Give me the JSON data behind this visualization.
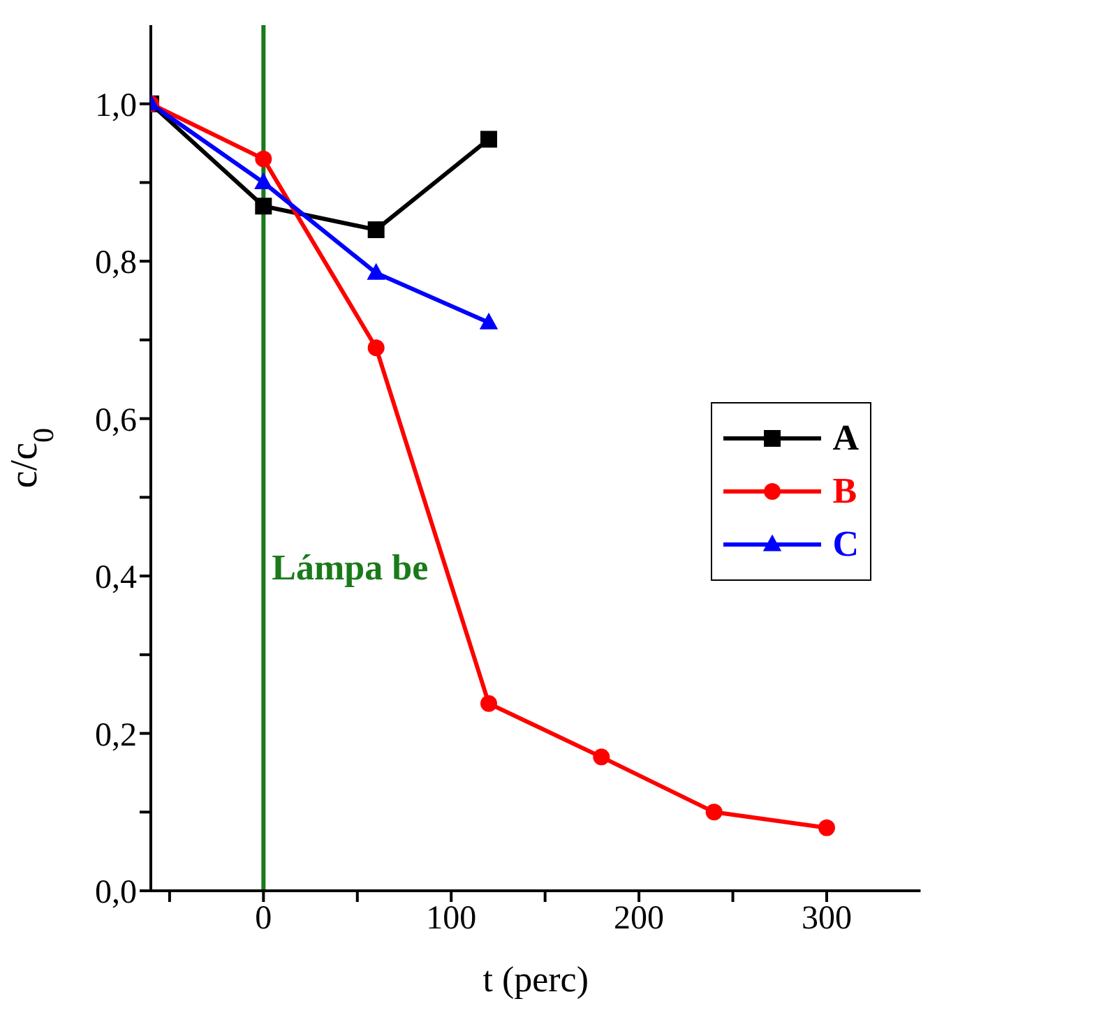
{
  "chart_data": {
    "type": "line",
    "xlabel": "t (perc)",
    "ylabel": "c/c$_{0}$",
    "xlim": [
      -60,
      350
    ],
    "ylim": [
      0,
      1.1
    ],
    "xticks": [
      {
        "value": -50,
        "label": null
      },
      {
        "value": 0,
        "label": "0"
      },
      {
        "value": 50,
        "label": null
      },
      {
        "value": 100,
        "label": "100"
      },
      {
        "value": 150,
        "label": null
      },
      {
        "value": 200,
        "label": "200"
      },
      {
        "value": 250,
        "label": null
      },
      {
        "value": 300,
        "label": "300"
      }
    ],
    "yticks": [
      {
        "value": 0,
        "label": "0,0"
      },
      {
        "value": 0.1,
        "label": null
      },
      {
        "value": 0.2,
        "label": "0,2"
      },
      {
        "value": 0.3,
        "label": null
      },
      {
        "value": 0.4,
        "label": "0,4"
      },
      {
        "value": 0.5,
        "label": null
      },
      {
        "value": 0.6,
        "label": "0,6"
      },
      {
        "value": 0.7,
        "label": null
      },
      {
        "value": 0.8,
        "label": "0,8"
      },
      {
        "value": 0.9,
        "label": null
      },
      {
        "value": 1,
        "label": "1,0"
      }
    ],
    "grid": false,
    "legend": "right",
    "line_style": "solid",
    "series": [
      {
        "name": "A",
        "color": "#000000",
        "marker": "square",
        "x": [
          -60,
          0,
          60,
          120
        ],
        "values": [
          1.0,
          0.87,
          0.84,
          0.955
        ]
      },
      {
        "name": "B",
        "color": "#ff0000",
        "marker": "circle",
        "x": [
          -60,
          0,
          60,
          120,
          180,
          240,
          300
        ],
        "values": [
          1.0,
          0.93,
          0.69,
          0.238,
          0.17,
          0.1,
          0.08
        ]
      },
      {
        "name": "C",
        "color": "#0000ff",
        "marker": "triangle",
        "x": [
          -60,
          0,
          60,
          120
        ],
        "values": [
          1.0,
          0.9,
          0.785,
          0.722
        ]
      }
    ],
    "ref_lines": [
      {
        "axis": "x",
        "value": 0,
        "label": "Lámpa be",
        "color": "#1a7a1a"
      }
    ]
  }
}
